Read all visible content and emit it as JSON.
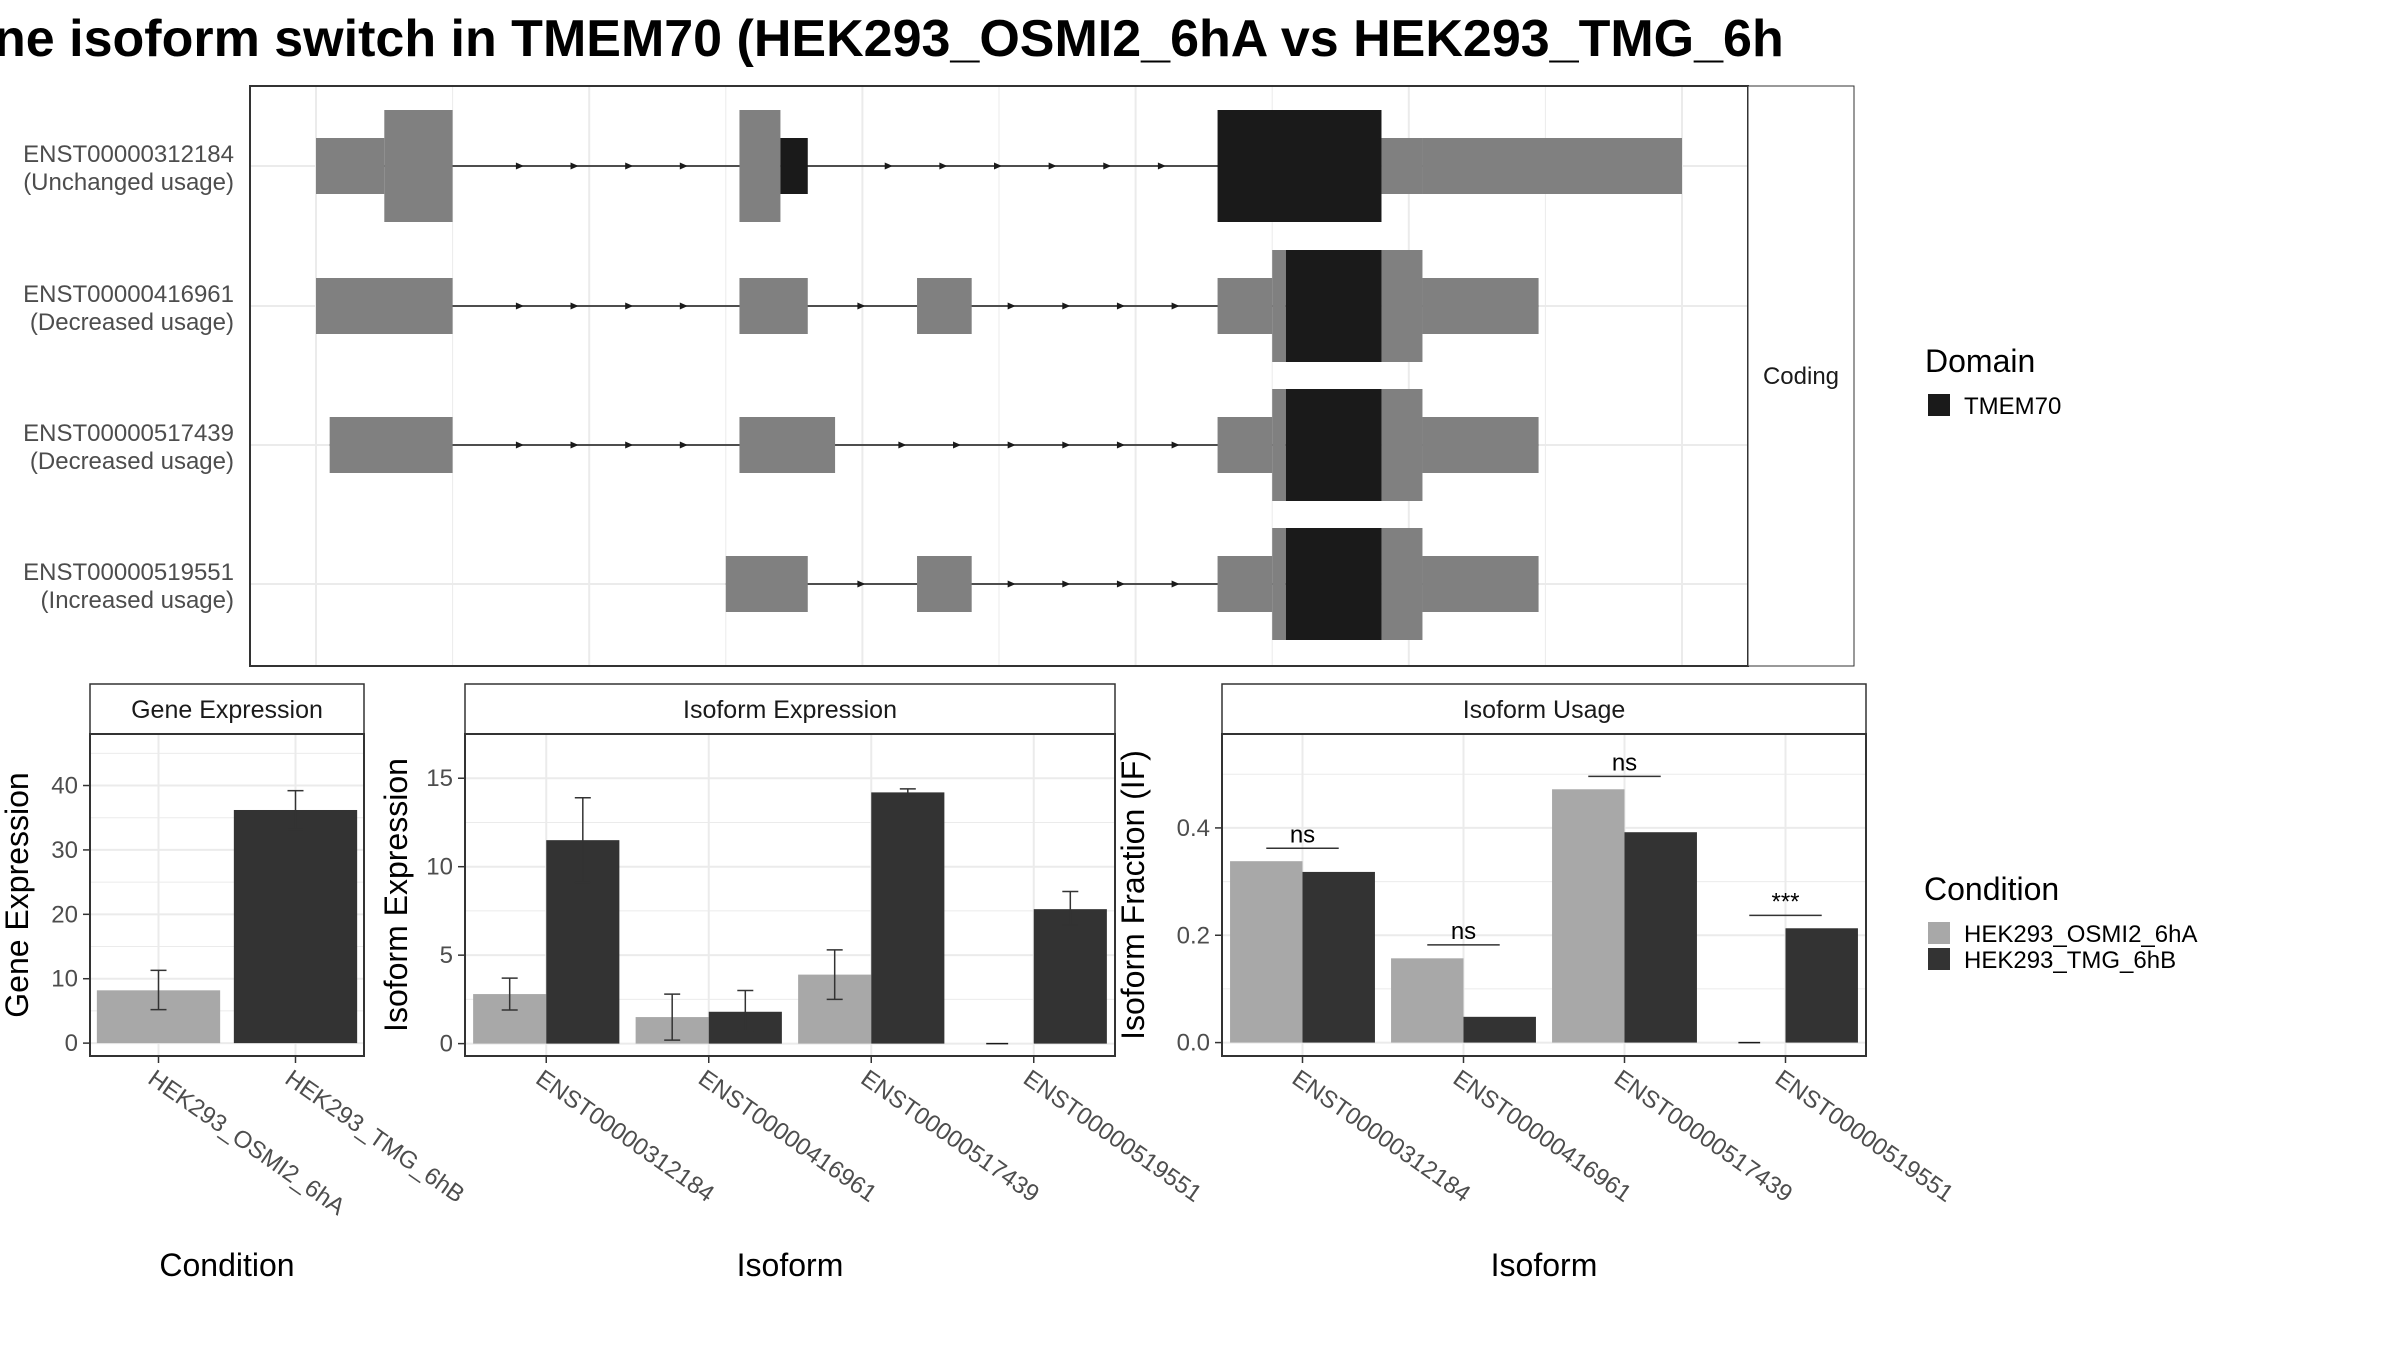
{
  "colors": {
    "cond1": "#a8a8a8",
    "cond2": "#333333",
    "exon": "#808080",
    "domain": "#1a1a1a",
    "grid": "#ebebeb",
    "panel_border": "#333333",
    "strip_bg": "#ffffff",
    "text": "#000000",
    "axis_text": "#4d4d4d"
  },
  "title": "ne isoform switch in TMEM70 (HEK293_OSMI2_6hA vs HEK293_TMG_6h",
  "structure": {
    "facet_label": "Coding",
    "isoforms": [
      {
        "id": "ENST00000312184",
        "note": "(Unchanged usage)",
        "exons": [
          [
            0.0,
            0.05
          ],
          [
            0.05,
            0.1
          ],
          [
            0.31,
            0.34
          ],
          [
            0.34,
            0.36
          ],
          [
            0.66,
            0.78
          ],
          [
            0.78,
            0.81
          ],
          [
            0.81,
            1.0
          ]
        ],
        "tall": [
          1,
          2,
          4
        ],
        "coding": [
          3,
          4
        ],
        "arrows": [
          0.15,
          0.19,
          0.23,
          0.27
        ],
        "arrows2": [
          0.42,
          0.46,
          0.5,
          0.54,
          0.58,
          0.62
        ]
      },
      {
        "id": "ENST00000416961",
        "note": "(Decreased usage)",
        "exons": [
          [
            0.0,
            0.1
          ],
          [
            0.31,
            0.36
          ],
          [
            0.44,
            0.48
          ],
          [
            0.66,
            0.7
          ],
          [
            0.7,
            0.71
          ],
          [
            0.71,
            0.78
          ],
          [
            0.78,
            0.81
          ],
          [
            0.81,
            0.895
          ]
        ],
        "tall": [
          4,
          5,
          6
        ],
        "coding": [
          5
        ],
        "arrows": [
          0.15,
          0.19,
          0.23,
          0.27,
          0.4,
          0.51,
          0.55,
          0.59,
          0.63
        ],
        "arrows2": []
      },
      {
        "id": "ENST00000517439",
        "note": "(Decreased usage)",
        "exons": [
          [
            0.01,
            0.1
          ],
          [
            0.31,
            0.38
          ],
          [
            0.66,
            0.7
          ],
          [
            0.7,
            0.71
          ],
          [
            0.71,
            0.78
          ],
          [
            0.78,
            0.81
          ],
          [
            0.81,
            0.895
          ]
        ],
        "tall": [
          3,
          4,
          5
        ],
        "coding": [
          4
        ],
        "arrows": [
          0.15,
          0.19,
          0.23,
          0.27,
          0.43,
          0.47,
          0.51,
          0.55,
          0.59,
          0.63
        ],
        "arrows2": []
      },
      {
        "id": "ENST00000519551",
        "note": "(Increased usage)",
        "exons": [
          [
            0.3,
            0.36
          ],
          [
            0.44,
            0.48
          ],
          [
            0.66,
            0.7
          ],
          [
            0.7,
            0.71
          ],
          [
            0.71,
            0.78
          ],
          [
            0.78,
            0.81
          ],
          [
            0.81,
            0.895
          ]
        ],
        "tall": [
          3,
          4,
          5
        ],
        "coding": [
          4
        ],
        "arrows": [
          0.4,
          0.51,
          0.55,
          0.59,
          0.63
        ],
        "arrows2": []
      }
    ]
  },
  "legend_domain": {
    "title": "Domain",
    "items": [
      {
        "label": "TMEM70",
        "color": "#1a1a1a"
      }
    ]
  },
  "legend_condition": {
    "title": "Condition",
    "items": [
      {
        "label": "HEK293_OSMI2_6hA",
        "color": "#a8a8a8"
      },
      {
        "label": "HEK293_TMG_6hB",
        "color": "#333333"
      }
    ]
  },
  "chart_data": [
    {
      "type": "bar",
      "title": "Gene Expression",
      "xlabel": "Condition",
      "ylabel": "Gene Expression",
      "categories": [
        "HEK293_OSMI2_6hA",
        "HEK293_TMG_6hB"
      ],
      "values": [
        8.2,
        36.2
      ],
      "err_low": [
        5.2,
        33.2
      ],
      "err_high": [
        11.3,
        39.2
      ],
      "ylim": [
        -2,
        48
      ],
      "yticks": [
        0,
        10,
        20,
        30,
        40
      ]
    },
    {
      "type": "bar",
      "title": "Isoform Expression",
      "xlabel": "Isoform",
      "ylabel": "Isoform Expression",
      "categories": [
        "ENST00000312184",
        "ENST00000416961",
        "ENST00000517439",
        "ENST00000519551"
      ],
      "series": [
        {
          "name": "HEK293_OSMI2_6hA",
          "values": [
            2.8,
            1.5,
            3.9,
            0.0
          ],
          "err_low": [
            1.9,
            0.2,
            2.5,
            0.0
          ],
          "err_high": [
            3.7,
            2.8,
            5.3,
            0.0
          ]
        },
        {
          "name": "HEK293_TMG_6hB",
          "values": [
            11.5,
            1.8,
            14.2,
            7.6
          ],
          "err_low": [
            9.1,
            0.7,
            14.0,
            6.7
          ],
          "err_high": [
            13.9,
            3.0,
            14.4,
            8.6
          ]
        }
      ],
      "ylim": [
        -0.7,
        17.5
      ],
      "yticks": [
        0,
        5,
        10,
        15
      ]
    },
    {
      "type": "bar",
      "title": "Isoform Usage",
      "xlabel": "Isoform",
      "ylabel": "Isoform Fraction (IF)",
      "categories": [
        "ENST00000312184",
        "ENST00000416961",
        "ENST00000517439",
        "ENST00000519551"
      ],
      "series": [
        {
          "name": "HEK293_OSMI2_6hA",
          "values": [
            0.338,
            0.157,
            0.472,
            0.0
          ]
        },
        {
          "name": "HEK293_TMG_6hB",
          "values": [
            0.318,
            0.048,
            0.392,
            0.213
          ]
        }
      ],
      "significance": [
        "ns",
        "ns",
        "ns",
        "***"
      ],
      "sig_heights": [
        0.362,
        0.182,
        0.496,
        0.237
      ],
      "ylim": [
        -0.025,
        0.575
      ],
      "yticks": [
        0.0,
        0.2,
        0.4
      ],
      "ytick_labels": [
        "0.0",
        "0.2",
        "0.4"
      ]
    }
  ]
}
